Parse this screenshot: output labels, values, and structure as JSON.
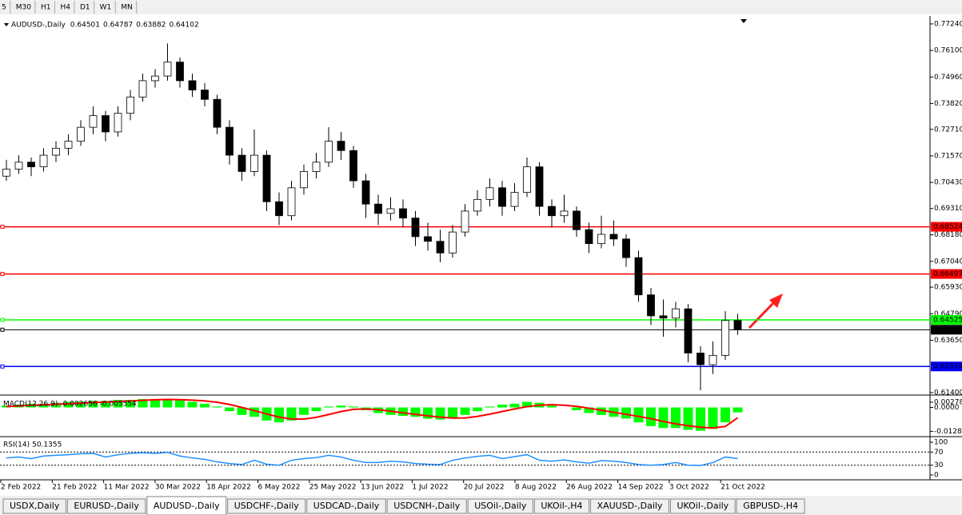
{
  "toolbar": {
    "timeframes": [
      "5",
      "M30",
      "H1",
      "H4",
      "D1",
      "W1",
      "MN"
    ]
  },
  "chart_data": {
    "type": "candlestick",
    "title": "AUDUSD-,Daily",
    "bull_color": "#ffffff",
    "bear_color": "#000000",
    "open": [
      0.707,
      0.71,
      0.713,
      0.711,
      0.716,
      0.719,
      0.722,
      0.728,
      0.733,
      0.726,
      0.734,
      0.741,
      0.748,
      0.75,
      0.756,
      0.748,
      0.744,
      0.74,
      0.728,
      0.716,
      0.709,
      0.716,
      0.696,
      0.69,
      0.702,
      0.709,
      0.713,
      0.722,
      0.718,
      0.705,
      0.695,
      0.691,
      0.693,
      0.689,
      0.681,
      0.679,
      0.674,
      0.683,
      0.692,
      0.697,
      0.702,
      0.694,
      0.7,
      0.711,
      0.694,
      0.69,
      0.692,
      0.684,
      0.678,
      0.682,
      0.68,
      0.672,
      0.656,
      0.647,
      0.646,
      0.65,
      0.631,
      0.626,
      0.63,
      0.64501
    ],
    "high": [
      0.714,
      0.716,
      0.715,
      0.719,
      0.722,
      0.725,
      0.731,
      0.737,
      0.735,
      0.737,
      0.744,
      0.751,
      0.753,
      0.764,
      0.758,
      0.751,
      0.747,
      0.742,
      0.731,
      0.719,
      0.727,
      0.718,
      0.7,
      0.705,
      0.712,
      0.717,
      0.728,
      0.726,
      0.72,
      0.708,
      0.699,
      0.698,
      0.697,
      0.692,
      0.687,
      0.684,
      0.686,
      0.695,
      0.701,
      0.706,
      0.705,
      0.704,
      0.715,
      0.713,
      0.697,
      0.699,
      0.694,
      0.687,
      0.69,
      0.688,
      0.682,
      0.675,
      0.659,
      0.654,
      0.653,
      0.652,
      0.634,
      0.636,
      0.649,
      0.64787
    ],
    "low": [
      0.705,
      0.708,
      0.707,
      0.709,
      0.713,
      0.716,
      0.72,
      0.725,
      0.722,
      0.724,
      0.731,
      0.739,
      0.745,
      0.748,
      0.745,
      0.741,
      0.737,
      0.725,
      0.712,
      0.705,
      0.707,
      0.692,
      0.686,
      0.688,
      0.699,
      0.706,
      0.711,
      0.714,
      0.702,
      0.689,
      0.686,
      0.688,
      0.685,
      0.677,
      0.675,
      0.67,
      0.672,
      0.681,
      0.69,
      0.694,
      0.69,
      0.692,
      0.698,
      0.69,
      0.685,
      0.687,
      0.681,
      0.674,
      0.676,
      0.677,
      0.668,
      0.653,
      0.643,
      0.638,
      0.642,
      0.627,
      0.615,
      0.622,
      0.628,
      0.63882
    ],
    "close": [
      0.71,
      0.713,
      0.711,
      0.716,
      0.719,
      0.722,
      0.728,
      0.733,
      0.726,
      0.734,
      0.741,
      0.748,
      0.75,
      0.756,
      0.748,
      0.744,
      0.74,
      0.728,
      0.716,
      0.709,
      0.716,
      0.696,
      0.69,
      0.702,
      0.709,
      0.713,
      0.722,
      0.718,
      0.705,
      0.695,
      0.691,
      0.693,
      0.689,
      0.681,
      0.679,
      0.674,
      0.683,
      0.692,
      0.697,
      0.702,
      0.694,
      0.7,
      0.711,
      0.694,
      0.69,
      0.692,
      0.684,
      0.678,
      0.682,
      0.68,
      0.672,
      0.656,
      0.647,
      0.646,
      0.65,
      0.631,
      0.626,
      0.63,
      0.645,
      0.64102
    ],
    "ylim": [
      0.6133,
      0.7758
    ],
    "yticks": [
      {
        "value": 0.7724,
        "label": "0.77240"
      },
      {
        "value": 0.761,
        "label": "0.76100"
      },
      {
        "value": 0.7496,
        "label": "0.74960"
      },
      {
        "value": 0.7382,
        "label": "0.73820"
      },
      {
        "value": 0.7271,
        "label": "0.72710"
      },
      {
        "value": 0.7157,
        "label": "0.71570"
      },
      {
        "value": 0.7043,
        "label": "0.70430"
      },
      {
        "value": 0.6931,
        "label": "0.69310"
      },
      {
        "value": 0.6818,
        "label": "0.68180"
      },
      {
        "value": 0.6704,
        "label": "0.67040"
      },
      {
        "value": 0.6593,
        "label": "0.65930"
      },
      {
        "value": 0.6479,
        "label": "0.64790"
      },
      {
        "value": 0.6365,
        "label": "0.63650"
      },
      {
        "value": 0.614,
        "label": "0.61400"
      }
    ],
    "levels": [
      {
        "value": 0.68524,
        "color": "#ff0000"
      },
      {
        "value": 0.66497,
        "color": "#ff0000"
      },
      {
        "value": 0.64525,
        "color": "#00ff00"
      },
      {
        "value": 0.64102,
        "color": "#000000"
      },
      {
        "value": 0.62524,
        "color": "#0000ff"
      }
    ],
    "x_labels": [
      "2 Feb 2022",
      "21 Feb 2022",
      "11 Mar 2022",
      "30 Mar 2022",
      "18 Apr 2022",
      "6 May 2022",
      "25 May 2022",
      "13 Jun 2022",
      "1 Jul 2022",
      "20 Jul 2022",
      "8 Aug 2022",
      "26 Aug 2022",
      "14 Sep 2022",
      "3 Oct 2022",
      "21 Oct 2022"
    ]
  },
  "macd": {
    "name": "MACD(12,26,9)",
    "main_color": "#00ff00",
    "signal_color": "#ff0000",
    "main": [
      0.001,
      0.0015,
      0.002,
      0.002,
      0.0025,
      0.003,
      0.003,
      0.0035,
      0.0035,
      0.004,
      0.004,
      0.0045,
      0.0045,
      0.0045,
      0.004,
      0.003,
      0.002,
      0.0005,
      -0.002,
      -0.004,
      -0.005,
      -0.007,
      -0.008,
      -0.007,
      -0.004,
      -0.002,
      0.0005,
      0.001,
      0.0005,
      -0.0015,
      -0.003,
      -0.004,
      -0.0045,
      -0.005,
      -0.006,
      -0.0065,
      -0.006,
      -0.004,
      -0.002,
      0.0005,
      0.0015,
      0.002,
      0.003,
      0.0025,
      0.001,
      0,
      -0.0015,
      -0.003,
      -0.004,
      -0.005,
      -0.006,
      -0.008,
      -0.01,
      -0.011,
      -0.011,
      -0.012,
      -0.0125,
      -0.0115,
      -0.008,
      -0.002656
    ],
    "signal": [
      0.0005,
      0.0008,
      0.0011,
      0.0014,
      0.0017,
      0.002,
      0.0023,
      0.0026,
      0.0029,
      0.0032,
      0.0035,
      0.0038,
      0.0041,
      0.0043,
      0.0042,
      0.0039,
      0.0035,
      0.0028,
      0.0016,
      0,
      -0.0017,
      -0.0035,
      -0.0052,
      -0.0062,
      -0.0062,
      -0.0053,
      -0.0038,
      -0.0022,
      -0.001,
      -0.0008,
      -0.0012,
      -0.002,
      -0.0029,
      -0.0037,
      -0.0045,
      -0.0052,
      -0.0057,
      -0.0056,
      -0.0048,
      -0.0036,
      -0.0022,
      -0.0008,
      0.0004,
      0.0012,
      0.0015,
      0.0012,
      0.0006,
      -0.0004,
      -0.0015,
      -0.0026,
      -0.0037,
      -0.0048,
      -0.006,
      -0.0075,
      -0.0088,
      -0.0098,
      -0.0106,
      -0.011,
      -0.0102,
      -0.005554
    ],
    "ylim": [
      -0.0135,
      0.0045
    ],
    "yticks": [
      0.00278,
      {
        "value": 0,
        "label": "0.0000"
      },
      -0.01282
    ]
  },
  "rsi": {
    "name": "RSI(14)",
    "color": "#1e90ff",
    "values": [
      52,
      55,
      50,
      58,
      60,
      62,
      65,
      66,
      55,
      62,
      66,
      68,
      66,
      69,
      58,
      52,
      48,
      40,
      35,
      32,
      45,
      33,
      30,
      45,
      50,
      53,
      60,
      55,
      45,
      38,
      38,
      42,
      40,
      35,
      33,
      32,
      45,
      52,
      57,
      60,
      50,
      56,
      62,
      45,
      42,
      46,
      40,
      36,
      44,
      42,
      38,
      32,
      30,
      32,
      38,
      30,
      29,
      38,
      55,
      50.1355
    ],
    "ylim": [
      0,
      100
    ],
    "yticks": [
      100,
      70,
      30,
      0
    ],
    "levels": [
      70,
      30
    ]
  },
  "tabs": [
    "USDX,Daily",
    "EURUSD-,Daily",
    "AUDUSD-,Daily",
    "USDCHF-,Daily",
    "USDCAD-,Daily",
    "USDCNH-,Daily",
    "USOil-,Daily",
    "UKOil-,H4",
    "XAUUSD-,Daily",
    "UKOil-,Daily",
    "GBPUSD-,H4"
  ],
  "active_tab": 2
}
